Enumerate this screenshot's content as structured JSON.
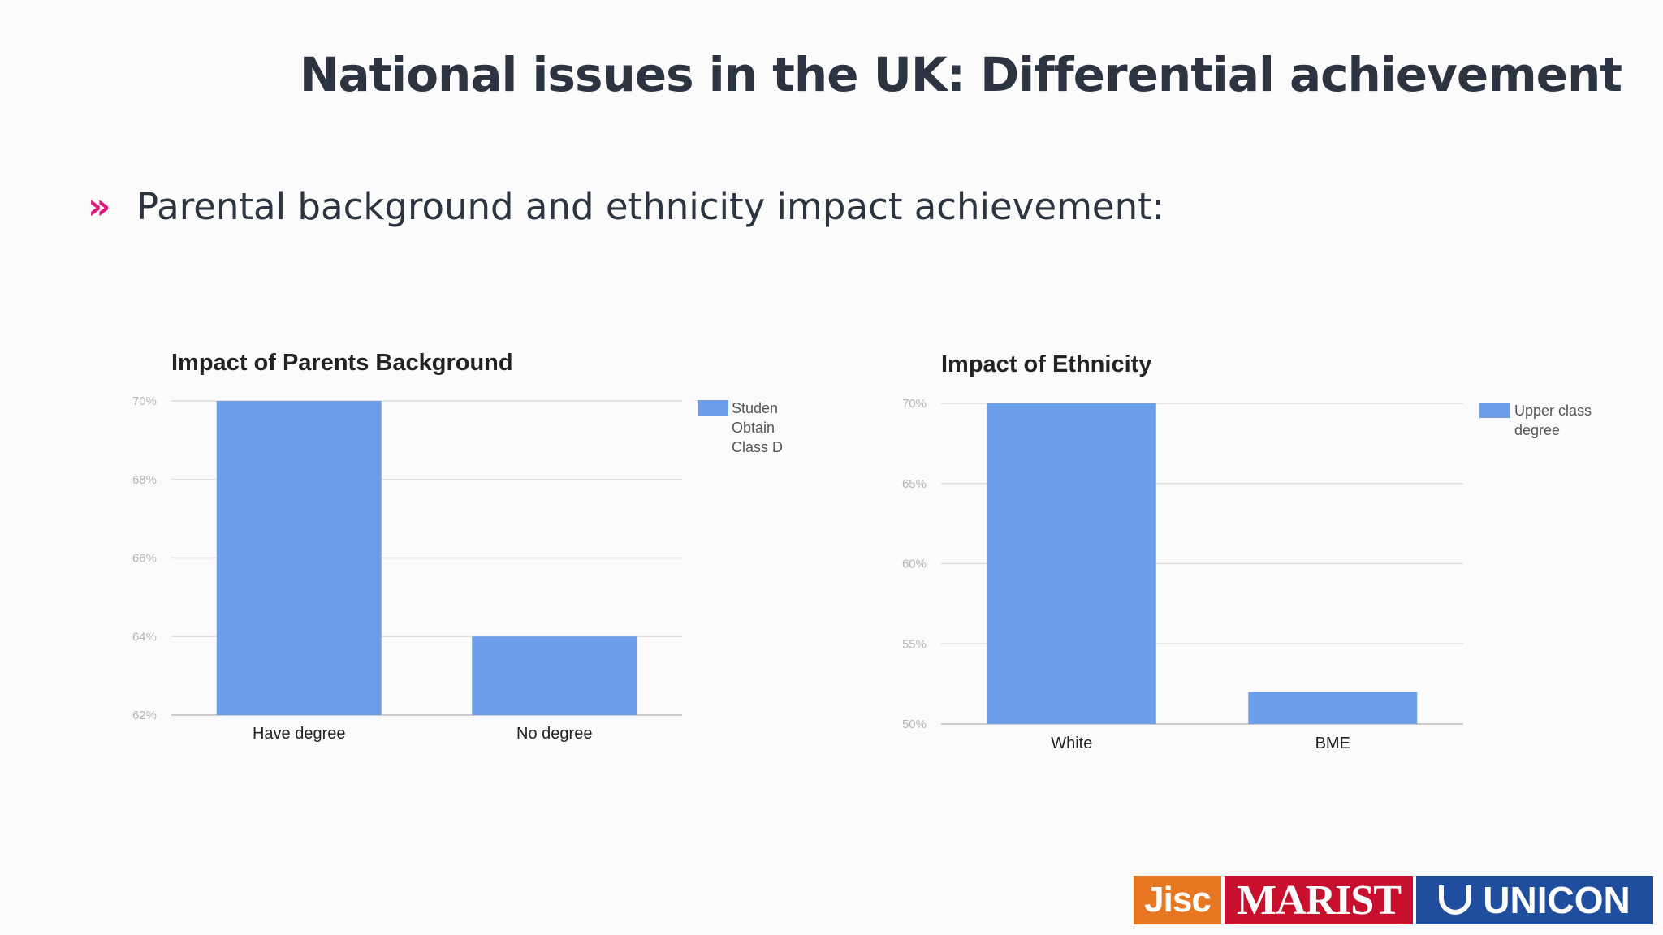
{
  "slide": {
    "title": "National issues in the UK: Differential achievement",
    "bullet_marker": "»",
    "bullet_text": "Parental background and ethnicity impact achievement:"
  },
  "colors": {
    "bar": "#6d9eeb",
    "title": "#2b3440",
    "bullet_marker": "#e0167d",
    "grid": "#dddddd",
    "tick_label": "#b5b5b5"
  },
  "chart_data": [
    {
      "type": "bar",
      "title": "Impact of Parents Background",
      "categories": [
        "Have degree",
        "No degree"
      ],
      "series": [
        {
          "name": "Students Obtaining Upper Class Degree",
          "values": [
            70,
            64
          ]
        }
      ],
      "legend_lines": [
        "Studen",
        "Obtain",
        "Class D"
      ],
      "legend_position": "right",
      "ylim": [
        62,
        70
      ],
      "yticks": [
        62,
        64,
        66,
        68,
        70
      ],
      "ytick_labels": [
        "62%",
        "64%",
        "66%",
        "68%",
        "70%"
      ],
      "xlabel": "",
      "ylabel": "",
      "grid": true
    },
    {
      "type": "bar",
      "title": "Impact of Ethnicity",
      "categories": [
        "White",
        "BME"
      ],
      "series": [
        {
          "name": "Upper class degree",
          "values": [
            70,
            52
          ]
        }
      ],
      "legend_lines": [
        "Upper class",
        "degree"
      ],
      "legend_position": "right",
      "ylim": [
        50,
        70
      ],
      "yticks": [
        50,
        55,
        60,
        65,
        70
      ],
      "ytick_labels": [
        "50%",
        "55%",
        "60%",
        "65%",
        "70%"
      ],
      "xlabel": "",
      "ylabel": "",
      "grid": true
    }
  ],
  "logos": {
    "jisc": "Jisc",
    "marist": "MARIST",
    "unicon": "UNICON"
  }
}
